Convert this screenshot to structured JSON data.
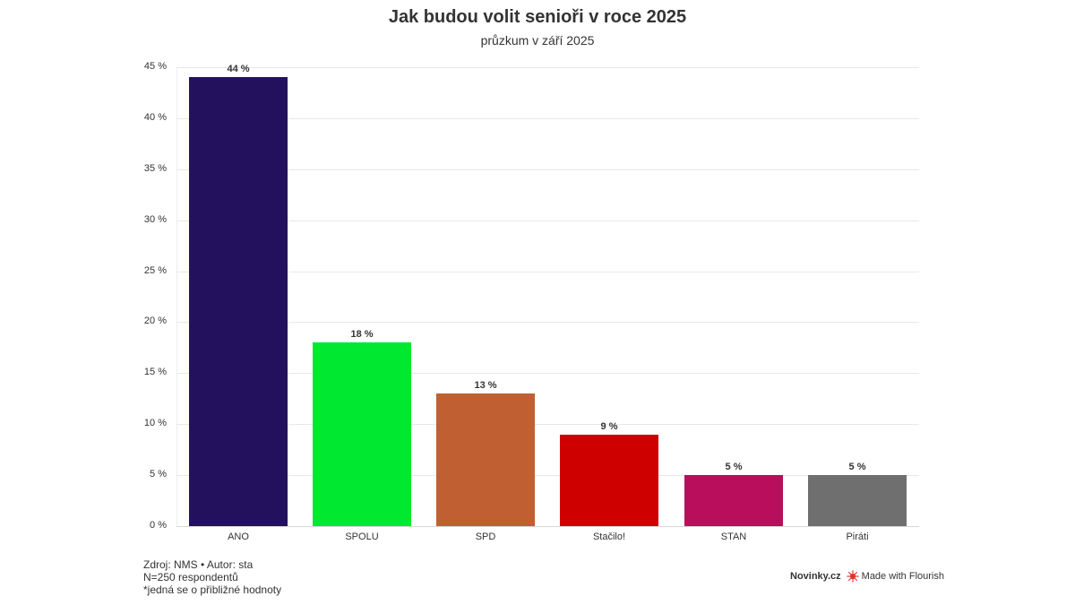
{
  "header": {
    "title": "Jak budou volit senioři v roce 2025",
    "subtitle": "průzkum v září 2025"
  },
  "footer": {
    "source": "Zdroj: NMS • Autor: sta",
    "sample": "N=250 respondentů",
    "note": "*jedná se o přibližné hodnoty"
  },
  "branding": {
    "publisher": "Novinky.cz",
    "made_with": "Made with Flourish",
    "icon": "flourish-logo-icon",
    "icon_color": "#e8312f"
  },
  "axis": {
    "y_ticks": [
      "0 %",
      "5 %",
      "10 %",
      "15 %",
      "20 %",
      "25 %",
      "30 %",
      "35 %",
      "40 %",
      "45 %"
    ]
  },
  "bars": [
    {
      "label": "ANO",
      "value_label": "44 %",
      "color": "#24115e"
    },
    {
      "label": "SPOLU",
      "value_label": "18 %",
      "color": "#00e930"
    },
    {
      "label": "SPD",
      "value_label": "13 %",
      "color": "#c06032"
    },
    {
      "label": "Stačilo!",
      "value_label": "9 %",
      "color": "#cf0000"
    },
    {
      "label": "STAN",
      "value_label": "5 %",
      "color": "#b80e5b"
    },
    {
      "label": "Piráti",
      "value_label": "5 %",
      "color": "#6f6f6f"
    }
  ],
  "chart_data": {
    "type": "bar",
    "title": "Jak budou volit senioři v roce 2025",
    "subtitle": "průzkum v září 2025",
    "categories": [
      "ANO",
      "SPOLU",
      "SPD",
      "Stačilo!",
      "STAN",
      "Piráti"
    ],
    "values": [
      44,
      18,
      13,
      9,
      5,
      5
    ],
    "colors": [
      "#24115e",
      "#00e930",
      "#c06032",
      "#cf0000",
      "#b80e5b",
      "#6f6f6f"
    ],
    "xlabel": "",
    "ylabel": "",
    "ylim": [
      0,
      45
    ],
    "y_tick_step": 5,
    "y_unit": "%",
    "grid": true,
    "legend": "none",
    "data_labels": true,
    "notes": [
      "Zdroj: NMS • Autor: sta",
      "N=250 respondentů",
      "*jedná se o přibližné hodnoty"
    ]
  }
}
